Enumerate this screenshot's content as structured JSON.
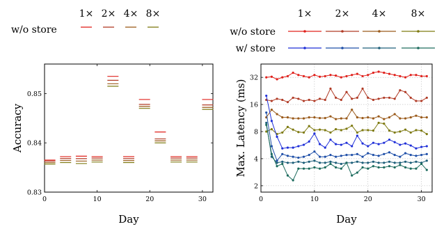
{
  "colors": {
    "1x": "#e0201b",
    "2x": "#b03a25",
    "4x": "#9a5a1a",
    "8x": "#7e7a10",
    "store_1x": "#1f2fd8",
    "store_2x": "#1f4fa8",
    "store_4x": "#1e5f7a",
    "store_8x": "#1d6c5e"
  },
  "chart_data": [
    {
      "type": "scatter",
      "marker": "horizontal-dash",
      "xlabel": "Day",
      "ylabel": "Accuracy",
      "xlim": [
        0,
        32
      ],
      "ylim": [
        0.83,
        0.856
      ],
      "xticks": [
        "0",
        "10",
        "20",
        "30"
      ],
      "yticks": [
        "0.83",
        "0.84",
        "0.85"
      ],
      "legend": {
        "placement": "top",
        "row_label": "w/o store",
        "columns": [
          "1×",
          "2×",
          "4×",
          "8×"
        ]
      },
      "x": [
        1,
        4,
        7,
        10,
        13,
        16,
        19,
        22,
        25,
        28,
        31
      ],
      "series": [
        {
          "name": "1×",
          "values": [
            0.8365,
            0.8372,
            0.8373,
            0.8372,
            0.8535,
            0.8372,
            0.8488,
            0.8422,
            0.8372,
            0.8372,
            0.8488
          ]
        },
        {
          "name": "2×",
          "values": [
            0.8363,
            0.8368,
            0.8368,
            0.8369,
            0.8527,
            0.8368,
            0.8478,
            0.8408,
            0.8369,
            0.8369,
            0.8477
          ]
        },
        {
          "name": "4×",
          "values": [
            0.836,
            0.8364,
            0.8363,
            0.8365,
            0.852,
            0.8364,
            0.8474,
            0.8404,
            0.8365,
            0.8365,
            0.8472
          ]
        },
        {
          "name": "8×",
          "values": [
            0.8357,
            0.836,
            0.8358,
            0.8361,
            0.8515,
            0.836,
            0.847,
            0.84,
            0.8361,
            0.8361,
            0.8468
          ]
        }
      ]
    },
    {
      "type": "line",
      "xlabel": "Day",
      "ylabel": "Max. Latency (ms)",
      "yscale": "log2",
      "xlim": [
        0,
        32
      ],
      "ylim": [
        1.7,
        45
      ],
      "xticks": [
        "0",
        "10",
        "20",
        "30"
      ],
      "yticks": [
        "2",
        "4",
        "8",
        "16",
        "32"
      ],
      "legend": {
        "placement": "top",
        "columns": [
          "1×",
          "2×",
          "4×",
          "8×"
        ],
        "rows": [
          "w/o store",
          "w/ store"
        ]
      },
      "x": [
        1,
        2,
        3,
        4,
        5,
        6,
        7,
        8,
        9,
        10,
        11,
        12,
        13,
        14,
        15,
        16,
        17,
        18,
        19,
        20,
        21,
        22,
        23,
        24,
        25,
        26,
        27,
        28,
        29,
        30,
        31
      ],
      "series": [
        {
          "name": "w/o store 1×",
          "values": [
            32,
            32.5,
            30.5,
            32,
            33,
            36,
            34,
            33,
            32,
            34,
            32.5,
            33,
            34,
            33.5,
            32,
            33,
            34,
            35,
            33,
            34,
            36,
            37,
            36,
            35,
            34,
            33,
            32,
            34,
            34,
            33,
            33
          ]
        },
        {
          "name": "w/o store 2×",
          "values": [
            18,
            17.5,
            18.5,
            18,
            17,
            19,
            18.5,
            17.5,
            18,
            17.5,
            18.5,
            18,
            24,
            19,
            18,
            22,
            18.5,
            19,
            24,
            19,
            18,
            18.5,
            19,
            19,
            18.5,
            23,
            22,
            19,
            17.5,
            17.5,
            19
          ]
        },
        {
          "name": "w/o store 4×",
          "values": [
            11.5,
            14,
            12.5,
            11.5,
            11.5,
            11.2,
            11.2,
            11.2,
            11.5,
            11.5,
            11.3,
            11.3,
            11.8,
            11,
            11.2,
            11.2,
            14,
            11.5,
            11.3,
            11.5,
            11.2,
            11.8,
            11,
            11.5,
            12.5,
            11.2,
            11.2,
            11.5,
            12,
            11.5,
            11.5
          ]
        },
        {
          "name": "w/o store 8×",
          "values": [
            8,
            8.5,
            7.5,
            7.8,
            9,
            8.4,
            7.9,
            7.8,
            9.2,
            8.3,
            8.4,
            8.3,
            7.8,
            8.5,
            8.3,
            8.6,
            9.3,
            7.8,
            8.3,
            8.3,
            8.2,
            10,
            9.8,
            8.2,
            7.8,
            8,
            8.4,
            7.8,
            8.3,
            8.2,
            7.5
          ]
        },
        {
          "name": "w/ store 1×",
          "values": [
            20,
            10.5,
            7,
            5.2,
            5.3,
            5.3,
            5.5,
            5.7,
            6.2,
            7.6,
            5.8,
            5.3,
            6.5,
            5.8,
            5.7,
            6,
            5.5,
            7.2,
            5.9,
            5.5,
            6,
            5.8,
            6,
            6.5,
            6.1,
            5.7,
            5.9,
            5.6,
            5.2,
            5.4,
            5.5
          ]
        },
        {
          "name": "w/ store 2×",
          "values": [
            13,
            5.5,
            3.8,
            4.5,
            4.3,
            4.2,
            4.1,
            4.2,
            4.4,
            4.8,
            4.2,
            4.2,
            4.4,
            4.2,
            4.3,
            4.4,
            4.4,
            4.5,
            4.2,
            4.6,
            4.4,
            4.3,
            4.5,
            4.7,
            4.4,
            4.2,
            4.6,
            4.4,
            4.3,
            4.4,
            4.5
          ]
        },
        {
          "name": "w/ store 4×",
          "values": [
            10,
            4.2,
            3.6,
            3.7,
            3.6,
            3.6,
            3.7,
            3.6,
            3.7,
            3.8,
            3.6,
            3.6,
            3.7,
            3.6,
            3.5,
            3.6,
            3.6,
            3.7,
            3.6,
            3.6,
            3.7,
            3.6,
            3.6,
            3.7,
            3.6,
            3.6,
            3.7,
            3.6,
            3.7,
            3.6,
            3.8
          ]
        },
        {
          "name": "w/ store 8×",
          "values": [
            9.5,
            4.5,
            3.3,
            3.5,
            2.6,
            2.3,
            3.1,
            3.1,
            3.1,
            3.2,
            3.1,
            3.2,
            3.5,
            3.2,
            3.1,
            3.6,
            2.6,
            2.8,
            3.2,
            3.1,
            3.3,
            3.2,
            3.2,
            3.3,
            3.2,
            3.4,
            3.2,
            3.1,
            3.1,
            3.5,
            3.0
          ]
        }
      ]
    }
  ]
}
